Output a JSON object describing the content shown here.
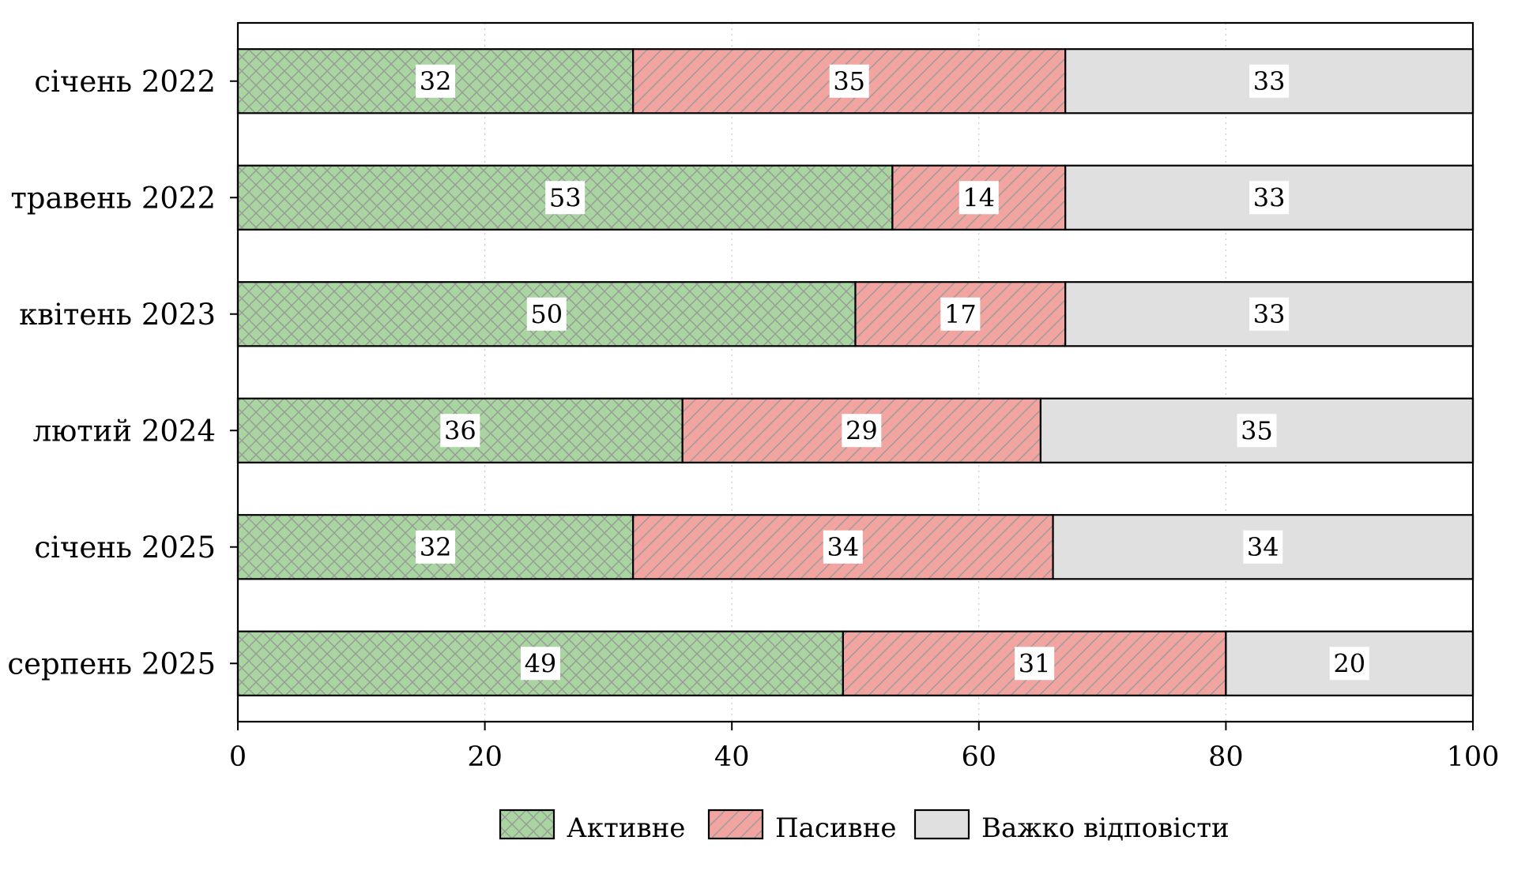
{
  "chart_data": {
    "type": "bar",
    "orientation": "horizontal",
    "stacked": true,
    "title": "",
    "xlabel": "",
    "ylabel": "",
    "categories": [
      "січень 2022",
      "травень 2022",
      "квітень 2023",
      "лютий 2024",
      "січень 2025",
      "серпень 2025"
    ],
    "series": [
      {
        "name": "Активне",
        "values": [
          32,
          53,
          50,
          36,
          32,
          49
        ],
        "color": "#a8d5a0",
        "hatch": "crosshatch"
      },
      {
        "name": "Пасивне",
        "values": [
          35,
          14,
          17,
          29,
          34,
          31
        ],
        "color": "#f2a5a0",
        "hatch": "diagonal"
      },
      {
        "name": "Важко відповісти",
        "values": [
          33,
          33,
          33,
          35,
          34,
          20
        ],
        "color": "#e0e0e0",
        "hatch": "none"
      }
    ],
    "xlim": [
      0,
      100
    ],
    "xticks": [
      0,
      20,
      40,
      60,
      80,
      100
    ],
    "grid": "vertical dotted",
    "legend_position": "bottom-center",
    "hatch_color": "#999999"
  }
}
